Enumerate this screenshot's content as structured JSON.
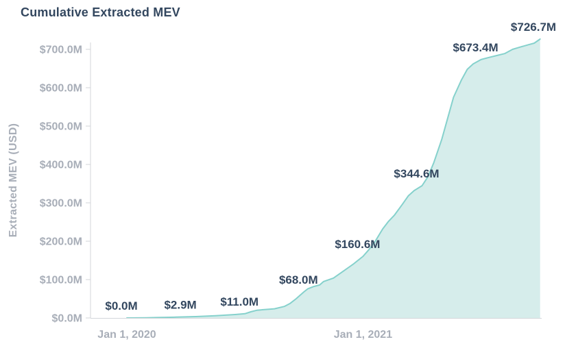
{
  "colors": {
    "title_text": "#33475f",
    "annotation_text": "#33475f",
    "axis_tick_text": "#a8aeb8",
    "axis_line": "#d3d6da",
    "line": "#85d1cc",
    "area_fill": "#d6edeb"
  },
  "chart_data": {
    "type": "area",
    "title": "Cumulative Extracted MEV",
    "ylabel": "Extracted MEV (USD)",
    "xlabel": "",
    "y_unit": "USD millions",
    "ylim": [
      0,
      726.7
    ],
    "grid": false,
    "legend": "none",
    "y_ticks": [
      {
        "value": 0,
        "label": "$0.0M"
      },
      {
        "value": 100,
        "label": "$100.0M"
      },
      {
        "value": 200,
        "label": "$200.0M"
      },
      {
        "value": 300,
        "label": "$300.0M"
      },
      {
        "value": 400,
        "label": "$400.0M"
      },
      {
        "value": 500,
        "label": "$500.0M"
      },
      {
        "value": 600,
        "label": "$600.0M"
      },
      {
        "value": 700,
        "label": "$700.0M"
      }
    ],
    "x_unit": "months since Jan 1, 2020",
    "x_ticks": [
      {
        "month": 0,
        "label": "Jan 1, 2020"
      },
      {
        "month": 12,
        "label": "Jan 1, 2021"
      }
    ],
    "series": [
      {
        "name": "Cumulative Extracted MEV",
        "x_months": [
          0,
          0.5,
          1,
          1.5,
          2,
          2.5,
          3,
          3.5,
          4,
          4.5,
          5,
          5.5,
          6,
          6.3,
          6.6,
          7,
          7.5,
          8,
          8.3,
          8.6,
          9,
          9.2,
          9.5,
          9.8,
          10,
          10.5,
          11,
          11.5,
          12,
          12.3,
          12.6,
          13,
          13.3,
          13.6,
          14,
          14.3,
          14.6,
          15,
          15.3,
          15.6,
          16,
          16.3,
          16.6,
          17,
          17.3,
          17.6,
          18,
          18.4,
          18.8,
          19.2,
          19.6,
          20,
          20.4,
          20.7,
          21
        ],
        "values": [
          0,
          0.2,
          0.6,
          1.0,
          1.6,
          2.2,
          2.9,
          3.6,
          4.6,
          5.8,
          7.4,
          9.0,
          11.0,
          16,
          20,
          22,
          24,
          30,
          38,
          50,
          68,
          76,
          82,
          86,
          95,
          104,
          122,
          140,
          160.6,
          178,
          198,
          232,
          252,
          268,
          296,
          318,
          332,
          344.6,
          368,
          405,
          465,
          520,
          575,
          620,
          648,
          662,
          673.4,
          679,
          684,
          689,
          700,
          706,
          712,
          716,
          726.7
        ]
      }
    ],
    "annotations": [
      {
        "month": 0,
        "value": 0.0,
        "label": "$0.0M"
      },
      {
        "month": 3,
        "value": 2.9,
        "label": "$2.9M"
      },
      {
        "month": 6,
        "value": 11.0,
        "label": "$11.0M"
      },
      {
        "month": 9,
        "value": 68.0,
        "label": "$68.0M"
      },
      {
        "month": 12,
        "value": 160.6,
        "label": "$160.6M"
      },
      {
        "month": 15,
        "value": 344.6,
        "label": "$344.6M"
      },
      {
        "month": 18,
        "value": 673.4,
        "label": "$673.4M"
      },
      {
        "month": 21,
        "value": 726.7,
        "label": "$726.7M"
      }
    ]
  }
}
